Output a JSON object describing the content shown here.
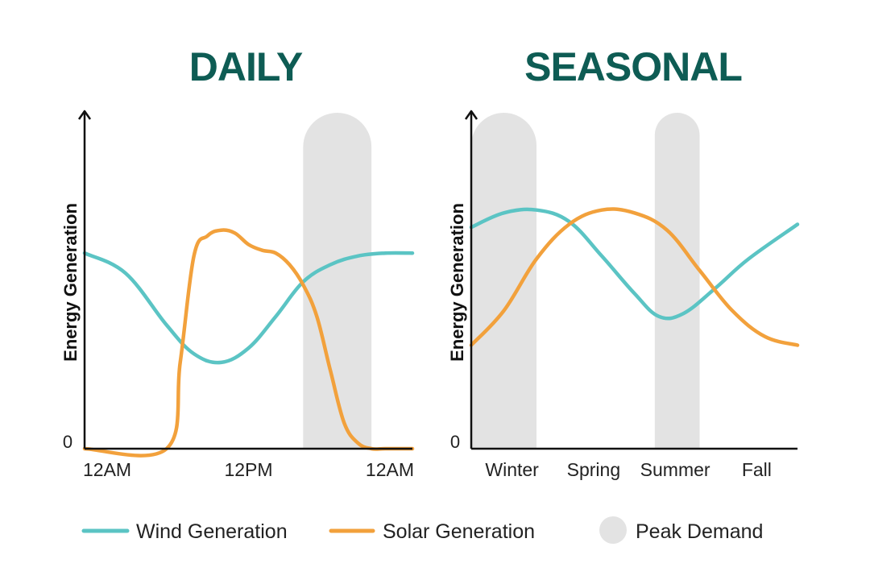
{
  "colors": {
    "title": "#0e5c54",
    "wind": "#5bc4c4",
    "solar": "#f2a13c",
    "peak": "#e3e3e3",
    "axis": "#111111"
  },
  "legend": {
    "wind_label": "Wind Generation",
    "solar_label": "Solar Generation",
    "peak_label": "Peak Demand"
  },
  "chart_data": [
    {
      "type": "line",
      "title": "DAILY",
      "ylabel": "Energy Generation",
      "y_zero_label": "0",
      "ylim": [
        0,
        10
      ],
      "xlim": [
        0,
        24
      ],
      "xticks": [
        {
          "x": 0,
          "label": "12AM"
        },
        {
          "x": 12,
          "label": "12PM"
        },
        {
          "x": 24,
          "label": "12AM"
        }
      ],
      "peak_demand": [
        [
          16,
          21
        ]
      ],
      "series": [
        {
          "name": "Wind Generation",
          "x": [
            0,
            3,
            6,
            8,
            10,
            12,
            14,
            16,
            18,
            20,
            22,
            24
          ],
          "y": [
            6.8,
            6.1,
            4.3,
            3.3,
            3.0,
            3.5,
            4.6,
            5.8,
            6.4,
            6.7,
            6.8,
            6.8
          ]
        },
        {
          "name": "Solar Generation",
          "x": [
            0,
            6,
            7,
            8,
            9,
            10,
            11,
            12,
            13,
            14,
            15,
            16,
            17,
            18,
            19,
            20,
            21,
            22,
            24
          ],
          "y": [
            0,
            0,
            3.0,
            6.7,
            7.4,
            7.6,
            7.5,
            7.1,
            6.9,
            6.8,
            6.4,
            5.7,
            4.6,
            2.7,
            0.9,
            0.2,
            0,
            0,
            0
          ]
        }
      ]
    },
    {
      "type": "line",
      "title": "SEASONAL",
      "ylabel": "Energy Generation",
      "y_zero_label": "0",
      "ylim": [
        0,
        10
      ],
      "xlim": [
        0,
        4
      ],
      "xticks": [
        {
          "x": 0.5,
          "label": "Winter"
        },
        {
          "x": 1.5,
          "label": "Spring"
        },
        {
          "x": 2.5,
          "label": "Summer"
        },
        {
          "x": 3.5,
          "label": "Fall"
        }
      ],
      "peak_demand": [
        [
          0,
          0.8
        ],
        [
          2.25,
          2.8
        ]
      ],
      "series": [
        {
          "name": "Wind Generation",
          "x": [
            0,
            0.4,
            0.8,
            1.2,
            1.6,
            2.0,
            2.3,
            2.6,
            3.0,
            3.4,
            4.0
          ],
          "y": [
            7.7,
            8.2,
            8.3,
            7.9,
            6.7,
            5.4,
            4.6,
            4.7,
            5.6,
            6.6,
            7.8
          ]
        },
        {
          "name": "Solar Generation",
          "x": [
            0,
            0.4,
            0.8,
            1.2,
            1.6,
            2.0,
            2.4,
            2.8,
            3.2,
            3.6,
            4.0
          ],
          "y": [
            3.6,
            4.8,
            6.6,
            7.8,
            8.3,
            8.2,
            7.6,
            6.2,
            4.8,
            3.9,
            3.6
          ]
        }
      ]
    }
  ]
}
